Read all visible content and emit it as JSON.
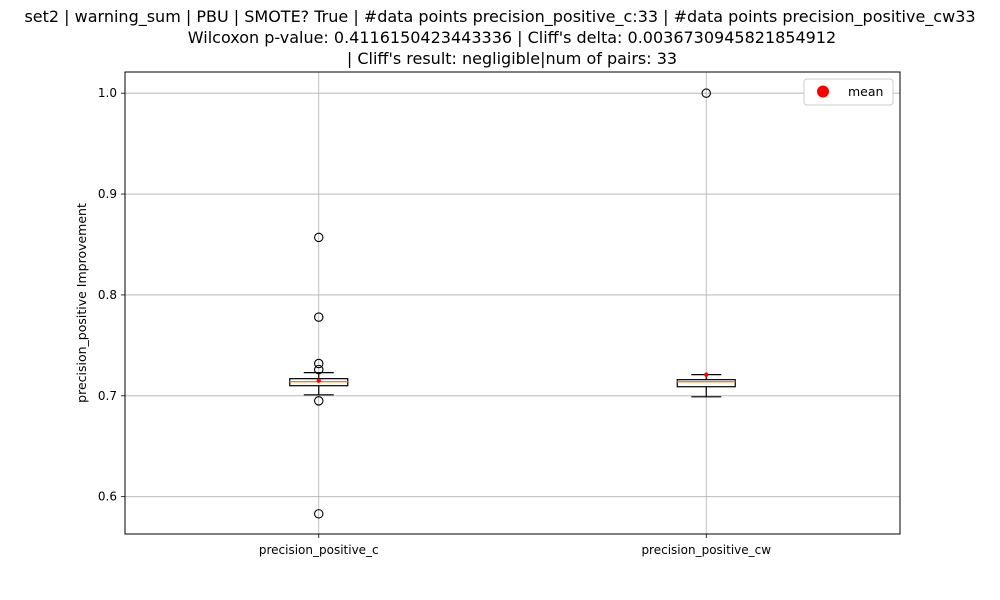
{
  "chart_data": {
    "type": "box",
    "title_lines": [
      "set2 | warning_sum | PBU | SMOTE? True | #data points precision_positive_c:33 | #data points precision_positive_cw33",
      "Wilcoxon p-value: 0.4116150423443336 | Cliff's delta: 0.0036730945821854912",
      "| Cliff's result: negligible|num of pairs: 33"
    ],
    "ylabel": "precision_positive Improvement",
    "xlabel": "",
    "ylim": [
      0.563,
      1.021
    ],
    "yticks": [
      0.6,
      0.7,
      0.8,
      0.9,
      1.0
    ],
    "ytick_labels": [
      "0.6",
      "0.7",
      "0.8",
      "0.9",
      "1.0"
    ],
    "grid": true,
    "legend": {
      "position": "top-right",
      "entries": [
        {
          "label": "mean",
          "color": "#ff0000"
        }
      ]
    },
    "colors": {
      "box_edge": "#000000",
      "median": "#ff7f0e",
      "mean_marker": "#ff0000",
      "grid": "#b0b0b0"
    },
    "categories": [
      "precision_positive_c",
      "precision_positive_cw"
    ],
    "boxes": [
      {
        "category": "precision_positive_c",
        "whisker_low": 0.701,
        "q1": 0.71,
        "median": 0.714,
        "q3": 0.717,
        "whisker_high": 0.723,
        "mean": 0.715,
        "outliers": [
          0.583,
          0.695,
          0.726,
          0.732,
          0.778,
          0.857
        ]
      },
      {
        "category": "precision_positive_cw",
        "whisker_low": 0.699,
        "q1": 0.709,
        "median": 0.714,
        "q3": 0.716,
        "whisker_high": 0.721,
        "mean": 0.721,
        "outliers": [
          1.0
        ]
      }
    ]
  }
}
